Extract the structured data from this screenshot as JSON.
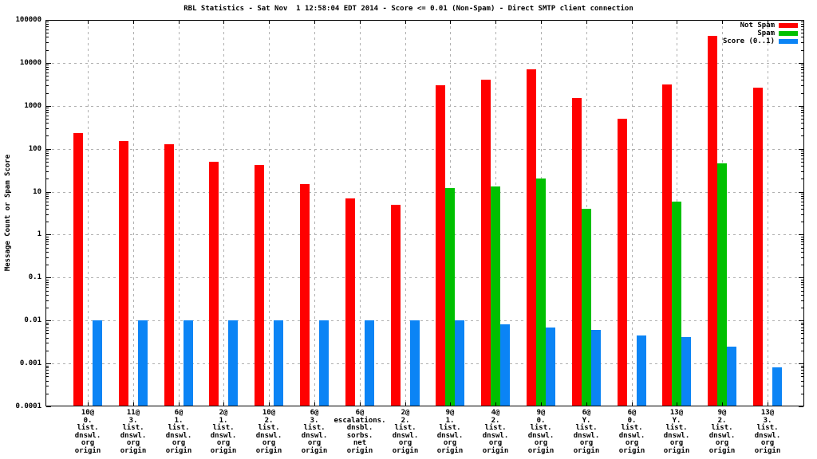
{
  "title": "RBL Statistics - Sat Nov  1 12:58:04 EDT 2014 - Score <= 0.01 (Non-Spam) - Direct SMTP client connection",
  "chart_data": {
    "type": "bar",
    "title": "RBL Statistics - Sat Nov  1 12:58:04 EDT 2014 - Score <= 0.01 (Non-Spam) - Direct SMTP client connection",
    "xlabel": "",
    "ylabel": "Message Count or Spam Score",
    "y_scale": "log10",
    "ylim": [
      0.0001,
      100000
    ],
    "y_tick_labels": [
      "100000",
      "10000",
      "1000",
      "100",
      "10",
      "1",
      "0.1",
      "0.01",
      "0.001",
      "0.0001"
    ],
    "grid": true,
    "legend_position": "top-right",
    "background": "#ffffff",
    "grid_color": "#b0b0b0",
    "categories": [
      [
        "10@",
        "0.",
        "list.",
        "dnswl.",
        "org",
        "origin"
      ],
      [
        "11@",
        "3.",
        "list.",
        "dnswl.",
        "org",
        "origin"
      ],
      [
        "6@",
        "1.",
        "list.",
        "dnswl.",
        "org",
        "origin"
      ],
      [
        "2@",
        "1.",
        "list.",
        "dnswl.",
        "org",
        "origin"
      ],
      [
        "10@",
        "2.",
        "list.",
        "dnswl.",
        "org",
        "origin"
      ],
      [
        "6@",
        "3.",
        "list.",
        "dnswl.",
        "org",
        "origin"
      ],
      [
        "6@",
        "escalations.",
        "dnsbl.",
        "sorbs.",
        "net",
        "origin"
      ],
      [
        "2@",
        "2.",
        "list.",
        "dnswl.",
        "org",
        "origin"
      ],
      [
        "9@",
        "1.",
        "list.",
        "dnswl.",
        "org",
        "origin"
      ],
      [
        "4@",
        "2.",
        "list.",
        "dnswl.",
        "org",
        "origin"
      ],
      [
        "9@",
        "0.",
        "list.",
        "dnswl.",
        "org",
        "origin"
      ],
      [
        "6@",
        "Y.",
        "list.",
        "dnswl.",
        "org",
        "origin"
      ],
      [
        "6@",
        "0.",
        "list.",
        "dnswl.",
        "org",
        "origin"
      ],
      [
        "13@",
        "Y.",
        "list.",
        "dnswl.",
        "org",
        "origin"
      ],
      [
        "9@",
        "2.",
        "list.",
        "dnswl.",
        "org",
        "origin"
      ],
      [
        "13@",
        "3.",
        "list.",
        "dnswl.",
        "org",
        "origin"
      ]
    ],
    "series": [
      {
        "name": "Not Spam",
        "color": "#ff0000",
        "values": [
          230,
          150,
          130,
          50,
          42,
          15,
          7,
          5,
          3000,
          4000,
          7000,
          1500,
          500,
          3200,
          42000,
          2700
        ]
      },
      {
        "name": "Spam",
        "color": "#00c000",
        "values": [
          null,
          null,
          null,
          null,
          null,
          null,
          null,
          null,
          12,
          13,
          20,
          4,
          null,
          6,
          45,
          null
        ]
      },
      {
        "name": "Score (0..1)",
        "color": "#0b84f5",
        "values": [
          0.01,
          0.01,
          0.01,
          0.01,
          0.01,
          0.01,
          0.01,
          0.01,
          0.01,
          0.008,
          0.007,
          0.006,
          0.0045,
          0.0042,
          0.0025,
          0.0008
        ]
      }
    ]
  }
}
